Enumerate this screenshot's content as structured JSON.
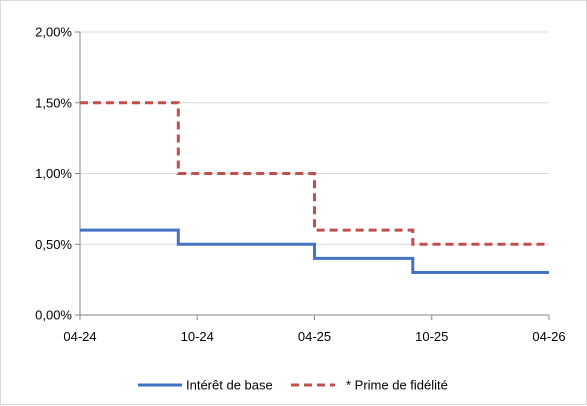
{
  "chart_data": {
    "type": "line",
    "step": true,
    "title": "",
    "xlabel": "",
    "ylabel": "",
    "x_ticks": [
      "04-24",
      "10-24",
      "04-25",
      "10-25",
      "04-26"
    ],
    "y_ticks": [
      "0,00%",
      "0,50%",
      "1,00%",
      "1,50%",
      "2,00%"
    ],
    "xlim": [
      "2024-04-01",
      "2026-04-01"
    ],
    "ylim": [
      0,
      2.0
    ],
    "grid": "horizontal",
    "legend_position": "bottom",
    "series": [
      {
        "name": "Intérêt de base",
        "color": "#4472C4",
        "dash": "solid",
        "points": [
          {
            "x": "2024-04-01",
            "y": 0.6
          },
          {
            "x": "2024-09-01",
            "y": 0.5
          },
          {
            "x": "2025-04-01",
            "y": 0.4
          },
          {
            "x": "2025-09-01",
            "y": 0.3
          },
          {
            "x": "2026-04-01",
            "y": 0.3
          }
        ]
      },
      {
        "name": "* Prime de fidélité",
        "color": "#C0504D",
        "dash": "dashed",
        "points": [
          {
            "x": "2024-04-01",
            "y": 1.5
          },
          {
            "x": "2024-09-01",
            "y": 1.0
          },
          {
            "x": "2025-04-01",
            "y": 0.6
          },
          {
            "x": "2025-09-01",
            "y": 0.5
          },
          {
            "x": "2026-04-01",
            "y": 0.5
          }
        ]
      }
    ]
  }
}
